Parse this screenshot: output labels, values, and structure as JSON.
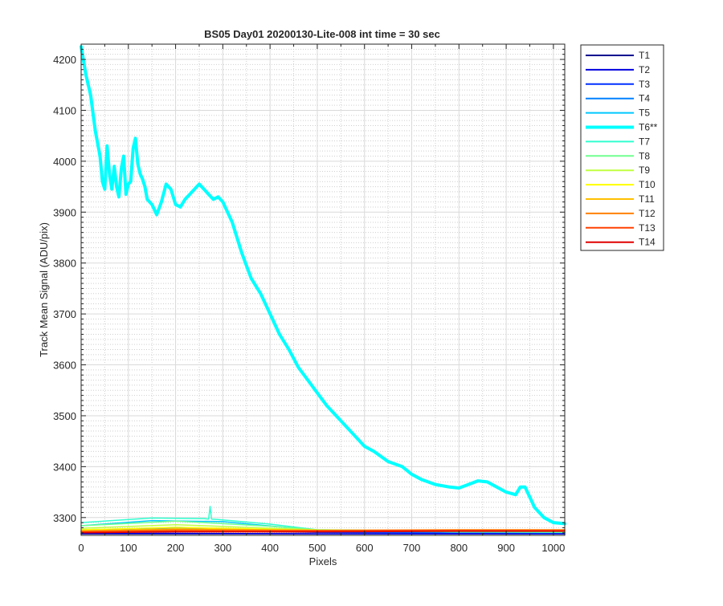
{
  "chart_data": {
    "type": "line",
    "title": "BS05 Day01 20200130-Lite-008 int time = 30 sec",
    "xlabel": "Pixels",
    "ylabel": "Track Mean Signal (ADU/pix)",
    "xlim": [
      0,
      1024
    ],
    "ylim": [
      3265,
      4230
    ],
    "xticks": [
      0,
      100,
      200,
      300,
      400,
      500,
      600,
      700,
      800,
      900,
      1000
    ],
    "yticks": [
      3300,
      3400,
      3500,
      3600,
      3700,
      3800,
      3900,
      4000,
      4100,
      4200
    ],
    "grid": "major and minor",
    "legend_position": "outside-right",
    "series": [
      {
        "name": "T1",
        "color": "#00008f",
        "highlight": false,
        "x": [
          0,
          200,
          500,
          800,
          1024
        ],
        "y": [
          3268,
          3268,
          3268,
          3268,
          3268
        ]
      },
      {
        "name": "T2",
        "color": "#0000e0",
        "highlight": false,
        "x": [
          0,
          200,
          500,
          800,
          1024
        ],
        "y": [
          3269,
          3269,
          3268,
          3268,
          3268
        ]
      },
      {
        "name": "T3",
        "color": "#0030ff",
        "highlight": false,
        "x": [
          0,
          200,
          500,
          800,
          1024
        ],
        "y": [
          3272,
          3274,
          3271,
          3270,
          3270
        ]
      },
      {
        "name": "T4",
        "color": "#0080ff",
        "highlight": false,
        "x": [
          0,
          200,
          500,
          800,
          1024
        ],
        "y": [
          3276,
          3280,
          3273,
          3271,
          3270
        ]
      },
      {
        "name": "T5",
        "color": "#00c8ff",
        "highlight": false,
        "x": [
          0,
          150,
          300,
          500,
          800,
          1024
        ],
        "y": [
          3284,
          3294,
          3292,
          3275,
          3272,
          3271
        ]
      },
      {
        "name": "T6**",
        "color": "#00ffff",
        "highlight": true,
        "x": [
          0,
          10,
          20,
          30,
          40,
          45,
          50,
          55,
          60,
          65,
          70,
          75,
          80,
          85,
          90,
          95,
          100,
          105,
          110,
          115,
          120,
          125,
          130,
          135,
          140,
          150,
          160,
          170,
          180,
          190,
          200,
          210,
          220,
          230,
          240,
          250,
          260,
          270,
          280,
          290,
          300,
          320,
          340,
          360,
          380,
          400,
          420,
          440,
          460,
          480,
          500,
          520,
          540,
          560,
          580,
          600,
          620,
          650,
          680,
          700,
          720,
          750,
          780,
          800,
          820,
          840,
          860,
          880,
          900,
          920,
          930,
          940,
          950,
          960,
          980,
          1000,
          1024
        ],
        "y": [
          4225,
          4170,
          4130,
          4060,
          4010,
          3960,
          3945,
          4030,
          3975,
          3945,
          3990,
          3950,
          3930,
          3985,
          4010,
          3935,
          3955,
          3960,
          4025,
          4045,
          3995,
          3975,
          3965,
          3950,
          3925,
          3915,
          3895,
          3920,
          3955,
          3945,
          3915,
          3910,
          3925,
          3935,
          3945,
          3955,
          3945,
          3935,
          3925,
          3930,
          3920,
          3880,
          3820,
          3770,
          3740,
          3700,
          3660,
          3630,
          3595,
          3570,
          3545,
          3520,
          3500,
          3480,
          3460,
          3440,
          3430,
          3410,
          3400,
          3385,
          3375,
          3365,
          3360,
          3358,
          3365,
          3372,
          3370,
          3360,
          3350,
          3345,
          3360,
          3360,
          3340,
          3320,
          3300,
          3290,
          3288
        ]
      },
      {
        "name": "T7",
        "color": "#30ffd0",
        "highlight": false,
        "x": [
          0,
          150,
          260,
          270,
          273,
          276,
          290,
          400,
          500,
          800,
          1024
        ],
        "y": [
          3290,
          3299,
          3298,
          3297,
          3322,
          3297,
          3296,
          3287,
          3276,
          3272,
          3271
        ]
      },
      {
        "name": "T8",
        "color": "#70ff90",
        "highlight": false,
        "x": [
          0,
          200,
          400,
          500,
          800,
          1024
        ],
        "y": [
          3284,
          3293,
          3283,
          3276,
          3272,
          3272
        ]
      },
      {
        "name": "T9",
        "color": "#c0ff40",
        "highlight": false,
        "x": [
          0,
          200,
          400,
          500,
          800,
          1024
        ],
        "y": [
          3279,
          3286,
          3279,
          3276,
          3274,
          3274
        ]
      },
      {
        "name": "T10",
        "color": "#ffff00",
        "highlight": false,
        "x": [
          0,
          200,
          400,
          500,
          800,
          1024
        ],
        "y": [
          3276,
          3281,
          3277,
          3275,
          3274,
          3274
        ]
      },
      {
        "name": "T11",
        "color": "#ffc000",
        "highlight": false,
        "x": [
          0,
          200,
          400,
          500,
          800,
          1024
        ],
        "y": [
          3274,
          3278,
          3276,
          3275,
          3275,
          3275
        ]
      },
      {
        "name": "T12",
        "color": "#ff8000",
        "highlight": false,
        "x": [
          0,
          200,
          400,
          500,
          800,
          1024
        ],
        "y": [
          3273,
          3276,
          3275,
          3275,
          3276,
          3276
        ]
      },
      {
        "name": "T13",
        "color": "#ff4000",
        "highlight": false,
        "x": [
          0,
          200,
          400,
          500,
          800,
          1024
        ],
        "y": [
          3272,
          3274,
          3274,
          3274,
          3275,
          3275
        ]
      },
      {
        "name": "T14",
        "color": "#e00000",
        "highlight": false,
        "x": [
          0,
          200,
          400,
          500,
          800,
          1024
        ],
        "y": [
          3270,
          3272,
          3272,
          3272,
          3273,
          3273
        ]
      }
    ]
  }
}
